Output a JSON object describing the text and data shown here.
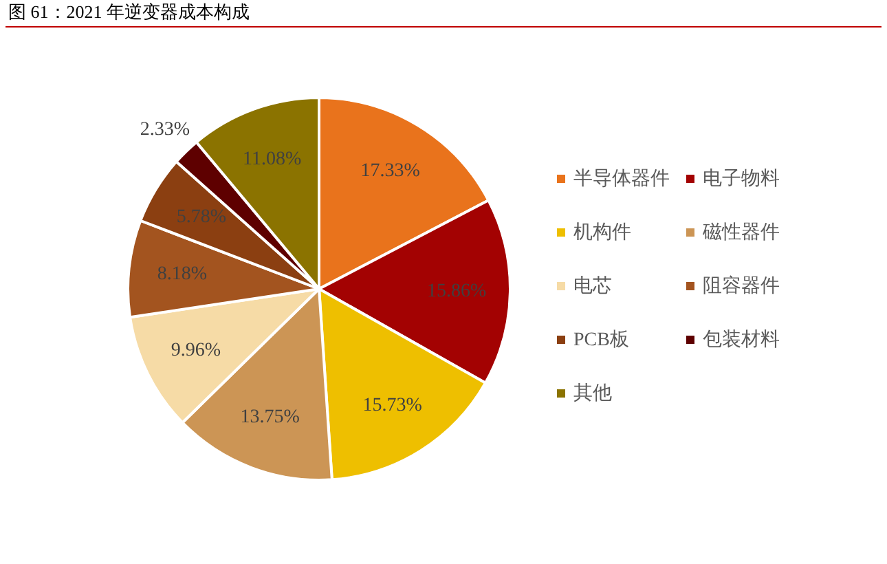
{
  "chart_data": {
    "type": "pie",
    "title": "图 61：2021 年逆变器成本构成",
    "categories": [
      "半导体器件",
      "电子物料",
      "机构件",
      "磁性器件",
      "电芯",
      "阻容器件",
      "PCB板",
      "包装材料",
      "其他"
    ],
    "values": [
      17.33,
      15.86,
      15.73,
      13.75,
      9.96,
      8.18,
      5.78,
      2.33,
      11.08
    ],
    "colors": [
      "#e9731c",
      "#a30202",
      "#eebf00",
      "#cc9555",
      "#f6dba6",
      "#a3541f",
      "#8b3f11",
      "#5e0000",
      "#8b7300"
    ],
    "value_labels": [
      "17.33%",
      "15.86%",
      "15.73%",
      "13.75%",
      "9.96%",
      "8.18%",
      "5.78%",
      "2.33%",
      "11.08%"
    ],
    "legend": "right"
  }
}
